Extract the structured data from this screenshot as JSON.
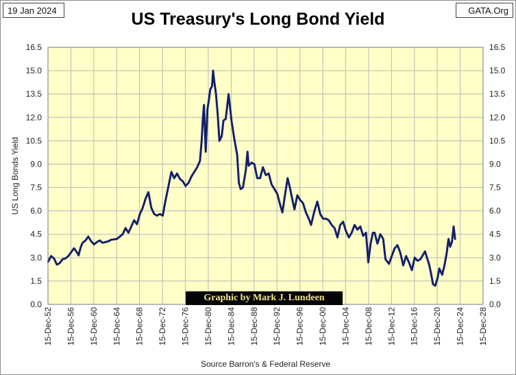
{
  "header": {
    "date": "19 Jan 2024",
    "site": "GATA.Org",
    "title": "US Treasury's Long Bond Yield"
  },
  "credit": "Graphic by Mark J. Lundeen",
  "source": "Source Barron's & Federal Reserve",
  "colors": {
    "plot_background": "#ffffc8",
    "grid": "#b8b8b8",
    "line": "#14206a"
  },
  "chart_data": {
    "type": "line",
    "title": "US Treasury's Long Bond Yield",
    "xlabel": "Source Barron's & Federal Reserve",
    "ylabel": "US Long Bonds Yield",
    "xlim": [
      1952.95,
      2028.95
    ],
    "ylim": [
      0,
      16.5
    ],
    "y_ticks": [
      "0.0",
      "1.5",
      "3.0",
      "4.5",
      "6.0",
      "7.5",
      "9.0",
      "10.5",
      "12.0",
      "13.5",
      "15.0",
      "16.5"
    ],
    "x_tick_labels": [
      "15-Dec-52",
      "15-Dec-56",
      "15-Dec-60",
      "15-Dec-64",
      "15-Dec-68",
      "15-Dec-72",
      "15-Dec-76",
      "15-Dec-80",
      "15-Dec-84",
      "15-Dec-88",
      "15-Dec-92",
      "15-Dec-96",
      "15-Dec-00",
      "15-Dec-04",
      "15-Dec-08",
      "15-Dec-12",
      "15-Dec-16",
      "15-Dec-20",
      "15-Dec-24",
      "15-Dec-28"
    ],
    "grid": true,
    "series": [
      {
        "name": "US Long Bond Yield",
        "points": [
          [
            1953.0,
            2.75
          ],
          [
            1953.5,
            3.1
          ],
          [
            1954.0,
            2.95
          ],
          [
            1954.5,
            2.55
          ],
          [
            1955.0,
            2.65
          ],
          [
            1955.5,
            2.9
          ],
          [
            1956.0,
            2.95
          ],
          [
            1956.5,
            3.1
          ],
          [
            1957.0,
            3.35
          ],
          [
            1957.5,
            3.6
          ],
          [
            1958.0,
            3.35
          ],
          [
            1958.3,
            3.15
          ],
          [
            1958.7,
            3.7
          ],
          [
            1959.0,
            3.95
          ],
          [
            1959.5,
            4.1
          ],
          [
            1960.0,
            4.35
          ],
          [
            1960.5,
            4.05
          ],
          [
            1961.0,
            3.85
          ],
          [
            1961.5,
            4.0
          ],
          [
            1962.0,
            4.1
          ],
          [
            1962.5,
            3.95
          ],
          [
            1963.0,
            4.0
          ],
          [
            1963.5,
            4.05
          ],
          [
            1964.0,
            4.15
          ],
          [
            1965.0,
            4.2
          ],
          [
            1966.0,
            4.5
          ],
          [
            1966.5,
            4.9
          ],
          [
            1967.0,
            4.6
          ],
          [
            1967.5,
            5.0
          ],
          [
            1968.0,
            5.4
          ],
          [
            1968.5,
            5.15
          ],
          [
            1969.0,
            5.8
          ],
          [
            1969.5,
            6.2
          ],
          [
            1970.0,
            6.8
          ],
          [
            1970.5,
            7.2
          ],
          [
            1971.0,
            6.2
          ],
          [
            1971.5,
            5.8
          ],
          [
            1972.0,
            5.7
          ],
          [
            1972.5,
            5.8
          ],
          [
            1973.0,
            5.7
          ],
          [
            1973.5,
            6.7
          ],
          [
            1974.0,
            7.6
          ],
          [
            1974.5,
            8.5
          ],
          [
            1975.0,
            8.1
          ],
          [
            1975.5,
            8.4
          ],
          [
            1976.0,
            8.05
          ],
          [
            1976.5,
            7.9
          ],
          [
            1977.0,
            7.6
          ],
          [
            1977.5,
            7.8
          ],
          [
            1978.0,
            8.2
          ],
          [
            1978.5,
            8.5
          ],
          [
            1979.0,
            8.8
          ],
          [
            1979.5,
            9.2
          ],
          [
            1979.8,
            10.5
          ],
          [
            1980.0,
            11.9
          ],
          [
            1980.2,
            12.8
          ],
          [
            1980.5,
            9.8
          ],
          [
            1980.8,
            12.5
          ],
          [
            1981.0,
            13.0
          ],
          [
            1981.3,
            13.8
          ],
          [
            1981.6,
            14.0
          ],
          [
            1981.8,
            15.0
          ],
          [
            1982.0,
            14.3
          ],
          [
            1982.3,
            13.5
          ],
          [
            1982.6,
            12.2
          ],
          [
            1982.9,
            10.5
          ],
          [
            1983.3,
            10.8
          ],
          [
            1983.6,
            11.8
          ],
          [
            1984.0,
            11.9
          ],
          [
            1984.5,
            13.5
          ],
          [
            1985.0,
            11.8
          ],
          [
            1985.5,
            10.6
          ],
          [
            1986.0,
            9.6
          ],
          [
            1986.3,
            7.8
          ],
          [
            1986.6,
            7.4
          ],
          [
            1987.0,
            7.5
          ],
          [
            1987.5,
            8.6
          ],
          [
            1987.8,
            9.8
          ],
          [
            1988.0,
            8.9
          ],
          [
            1988.5,
            9.1
          ],
          [
            1989.0,
            9.0
          ],
          [
            1989.5,
            8.1
          ],
          [
            1990.0,
            8.1
          ],
          [
            1990.5,
            8.8
          ],
          [
            1991.0,
            8.3
          ],
          [
            1991.5,
            8.4
          ],
          [
            1992.0,
            7.7
          ],
          [
            1992.5,
            7.4
          ],
          [
            1993.0,
            7.1
          ],
          [
            1993.5,
            6.4
          ],
          [
            1993.9,
            5.9
          ],
          [
            1994.3,
            6.9
          ],
          [
            1994.8,
            8.1
          ],
          [
            1995.2,
            7.5
          ],
          [
            1995.7,
            6.6
          ],
          [
            1996.0,
            6.1
          ],
          [
            1996.5,
            7.0
          ],
          [
            1997.0,
            6.7
          ],
          [
            1997.5,
            6.5
          ],
          [
            1998.0,
            5.9
          ],
          [
            1998.5,
            5.5
          ],
          [
            1998.9,
            5.1
          ],
          [
            1999.5,
            6.0
          ],
          [
            2000.0,
            6.6
          ],
          [
            2000.5,
            5.8
          ],
          [
            2001.0,
            5.5
          ],
          [
            2001.5,
            5.5
          ],
          [
            2002.0,
            5.4
          ],
          [
            2002.5,
            5.1
          ],
          [
            2003.0,
            4.9
          ],
          [
            2003.5,
            4.3
          ],
          [
            2004.0,
            5.1
          ],
          [
            2004.5,
            5.3
          ],
          [
            2005.0,
            4.7
          ],
          [
            2005.5,
            4.3
          ],
          [
            2006.0,
            4.6
          ],
          [
            2006.5,
            5.1
          ],
          [
            2007.0,
            4.8
          ],
          [
            2007.5,
            5.0
          ],
          [
            2008.0,
            4.4
          ],
          [
            2008.5,
            4.6
          ],
          [
            2008.9,
            2.7
          ],
          [
            2009.3,
            3.9
          ],
          [
            2009.7,
            4.6
          ],
          [
            2010.0,
            4.6
          ],
          [
            2010.5,
            3.9
          ],
          [
            2011.0,
            4.5
          ],
          [
            2011.5,
            4.2
          ],
          [
            2011.9,
            2.9
          ],
          [
            2012.5,
            2.6
          ],
          [
            2013.0,
            3.1
          ],
          [
            2013.5,
            3.6
          ],
          [
            2014.0,
            3.8
          ],
          [
            2014.5,
            3.3
          ],
          [
            2015.0,
            2.5
          ],
          [
            2015.5,
            3.1
          ],
          [
            2016.0,
            2.7
          ],
          [
            2016.5,
            2.2
          ],
          [
            2017.0,
            3.0
          ],
          [
            2017.5,
            2.8
          ],
          [
            2018.0,
            2.9
          ],
          [
            2018.8,
            3.4
          ],
          [
            2019.5,
            2.6
          ],
          [
            2019.8,
            2.1
          ],
          [
            2020.2,
            1.3
          ],
          [
            2020.6,
            1.2
          ],
          [
            2021.0,
            1.7
          ],
          [
            2021.3,
            2.3
          ],
          [
            2021.8,
            1.9
          ],
          [
            2022.2,
            2.5
          ],
          [
            2022.6,
            3.3
          ],
          [
            2022.9,
            4.2
          ],
          [
            2023.2,
            3.7
          ],
          [
            2023.5,
            4.0
          ],
          [
            2023.8,
            5.0
          ],
          [
            2024.05,
            4.2
          ]
        ]
      }
    ]
  }
}
